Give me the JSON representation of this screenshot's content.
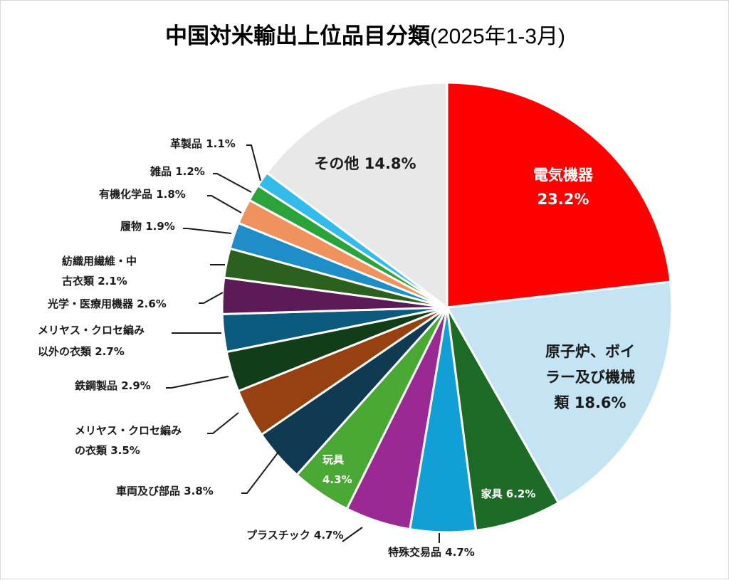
{
  "chart_data": {
    "type": "pie",
    "title": "中国対米輸出上位品目分類",
    "subtitle": "(2025年1-3月)",
    "start_angle_deg": 0,
    "direction": "clockwise",
    "slices": [
      {
        "label": "電気機器",
        "value": 23.2,
        "value_text": "23.2%",
        "color": "#ff0000",
        "text_color": "#ffffff"
      },
      {
        "label": "原子炉、ボイラー及び機械類",
        "value": 18.6,
        "value_text": "18.6%",
        "color": "#c5e4f3",
        "text_color": "#1a1a1a"
      },
      {
        "label": "家具",
        "value": 6.2,
        "value_text": "6.2%",
        "color": "#1d6b26",
        "text_color": "#ffffff"
      },
      {
        "label": "特殊交易品",
        "value": 4.7,
        "value_text": "4.7%",
        "color": "#129fd6",
        "text_color": "#1a1a1a"
      },
      {
        "label": "プラスチック",
        "value": 4.7,
        "value_text": "4.7%",
        "color": "#9b2994",
        "text_color": "#1a1a1a"
      },
      {
        "label": "玩具",
        "value": 4.3,
        "value_text": "4.3%",
        "color": "#4aa834",
        "text_color": "#ffffff"
      },
      {
        "label": "車両及び部品",
        "value": 3.8,
        "value_text": "3.8%",
        "color": "#0f3a52",
        "text_color": "#1a1a1a"
      },
      {
        "label": "メリヤス・クロセ編みの衣類",
        "value": 3.5,
        "value_text": "3.5%",
        "color": "#974110",
        "text_color": "#1a1a1a"
      },
      {
        "label": "鉄鋼製品",
        "value": 2.9,
        "value_text": "2.9%",
        "color": "#113e19",
        "text_color": "#1a1a1a"
      },
      {
        "label": "メリヤス・クロセ編み以外の衣類",
        "value": 2.7,
        "value_text": "2.7%",
        "color": "#0c5a7e",
        "text_color": "#1a1a1a"
      },
      {
        "label": "光学・医療用機器",
        "value": 2.6,
        "value_text": "2.6%",
        "color": "#5c1a57",
        "text_color": "#1a1a1a"
      },
      {
        "label": "紡織用繊維・中古衣類",
        "value": 2.1,
        "value_text": "2.1%",
        "color": "#2c601f",
        "text_color": "#1a1a1a"
      },
      {
        "label": "履物",
        "value": 1.9,
        "value_text": "1.9%",
        "color": "#1f8dc8",
        "text_color": "#1a1a1a"
      },
      {
        "label": "有機化学品",
        "value": 1.8,
        "value_text": "1.8%",
        "color": "#f0925e",
        "text_color": "#1a1a1a"
      },
      {
        "label": "雑品",
        "value": 1.2,
        "value_text": "1.2%",
        "color": "#2aa33a",
        "text_color": "#1a1a1a"
      },
      {
        "label": "革製品",
        "value": 1.1,
        "value_text": "1.1%",
        "color": "#33bbec",
        "text_color": "#1a1a1a"
      },
      {
        "label": "その他",
        "value": 14.8,
        "value_text": "14.8%",
        "color": "#e8e8e8",
        "text_color": "#1a1a1a"
      }
    ]
  }
}
